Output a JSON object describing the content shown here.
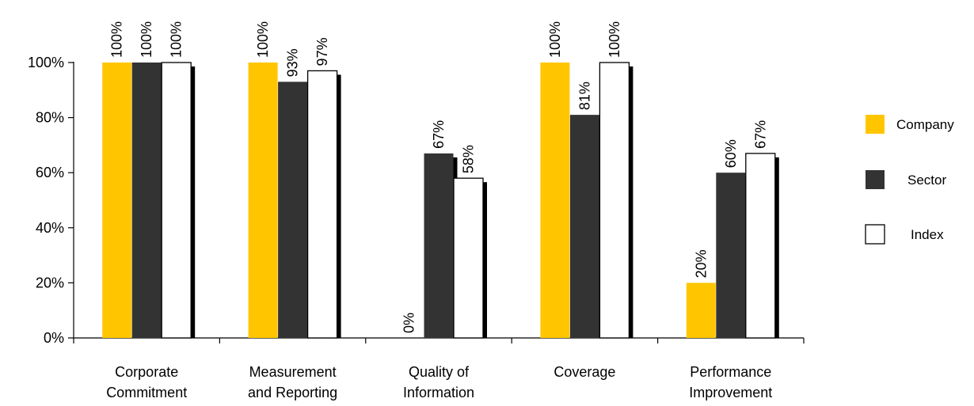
{
  "chart_data": {
    "type": "bar",
    "categories": [
      [
        "Corporate",
        "Commitment"
      ],
      [
        "Measurement",
        "and Reporting"
      ],
      [
        "Quality of",
        "Information"
      ],
      [
        "Coverage"
      ],
      [
        "Performance",
        "Improvement"
      ]
    ],
    "series": [
      {
        "name": "Company",
        "values": [
          100,
          100,
          0,
          100,
          20
        ],
        "labels": [
          "100%",
          "100%",
          "0%",
          "100%",
          "20%"
        ]
      },
      {
        "name": "Sector",
        "values": [
          100,
          93,
          67,
          81,
          60
        ],
        "labels": [
          "100%",
          "93%",
          "67%",
          "81%",
          "60%"
        ]
      },
      {
        "name": "Index",
        "values": [
          100,
          97,
          58,
          100,
          67
        ],
        "labels": [
          "100%",
          "97%",
          "58%",
          "100%",
          "67%"
        ]
      }
    ],
    "colors": {
      "Company": "#ffc600",
      "Sector": "#333333",
      "Index": "#ffffff",
      "outline": "#000000",
      "shadow": "#000000"
    },
    "y_ticks": [
      "0%",
      "20%",
      "40%",
      "60%",
      "80%",
      "100%"
    ],
    "ylim": [
      0,
      100
    ],
    "grid": false,
    "legend_position": "right",
    "title": "",
    "xlabel": "",
    "ylabel": ""
  }
}
